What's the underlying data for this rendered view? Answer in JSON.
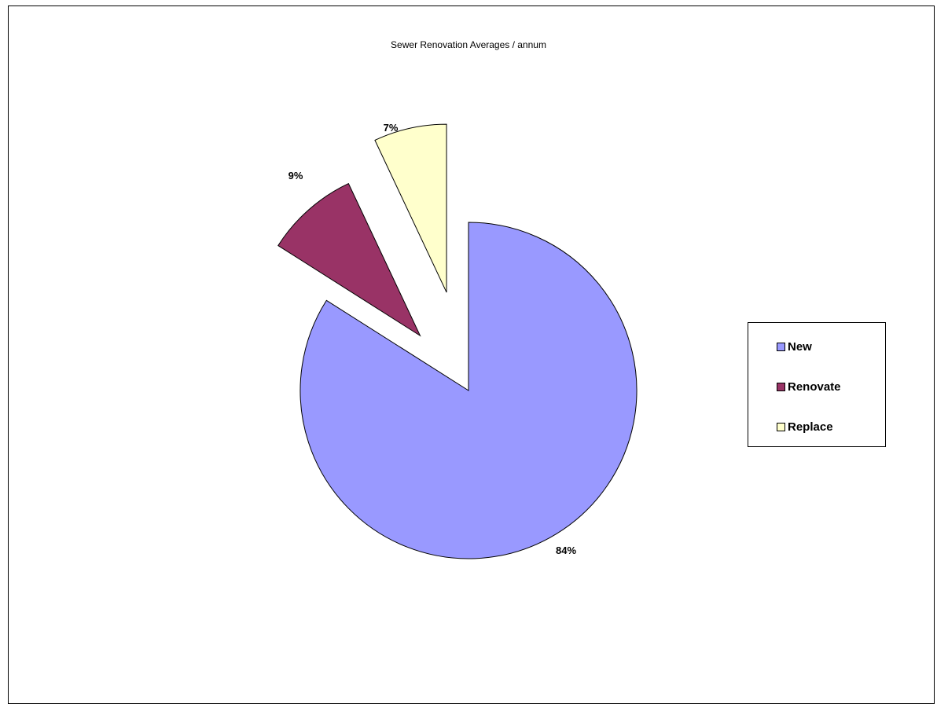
{
  "chart_data": {
    "type": "pie",
    "title": "Sewer Renovation Averages / annum",
    "categories": [
      "New",
      "Renovate",
      "Replace"
    ],
    "values": [
      84,
      9,
      7
    ],
    "value_labels": [
      "84%",
      "9%",
      "7%"
    ],
    "colors": [
      "#9999ff",
      "#993366",
      "#ffffcc"
    ],
    "exploded": [
      false,
      true,
      true
    ],
    "legend_position": "right"
  }
}
